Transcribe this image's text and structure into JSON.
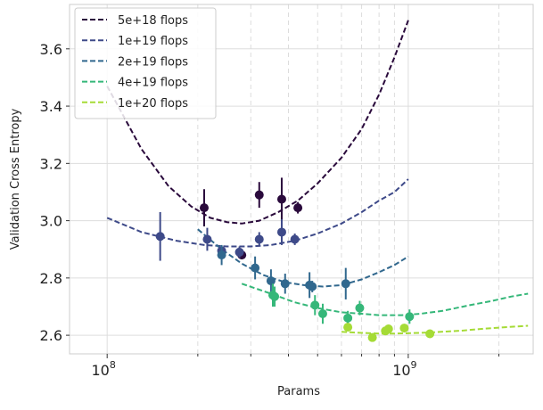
{
  "chart_data": {
    "type": "scatter",
    "xlabel": "Params",
    "ylabel": "Validation Cross Entropy",
    "xscale": "log",
    "xlim": [
      75000000,
      2600000000
    ],
    "ylim": [
      2.535,
      3.755
    ],
    "yticks": [
      2.6,
      2.8,
      3.0,
      3.2,
      3.4,
      3.6
    ],
    "ytick_labels": [
      "2.6",
      "2.8",
      "3.0",
      "3.2",
      "3.4",
      "3.6"
    ],
    "xtick_majors": [
      100000000,
      1000000000
    ],
    "xtick_major_labels": [
      {
        "base": "10",
        "exp": "8"
      },
      {
        "base": "10",
        "exp": "9"
      }
    ],
    "xtick_minors": [
      200000000,
      300000000,
      400000000,
      500000000,
      600000000,
      700000000,
      800000000,
      900000000,
      2000000000
    ],
    "legend_position": "top-left",
    "series": [
      {
        "name": "5e+18 flops",
        "color": "#2a0a3c",
        "points": [
          {
            "x": 210000000,
            "y": 3.045,
            "err": 0.065
          },
          {
            "x": 280000000,
            "y": 2.88,
            "err": 0.015
          },
          {
            "x": 320000000,
            "y": 3.09,
            "err": 0.045
          },
          {
            "x": 380000000,
            "y": 3.075,
            "err": 0.075
          },
          {
            "x": 430000000,
            "y": 3.045,
            "err": 0.02
          }
        ],
        "curve": [
          [
            100000000,
            3.47
          ],
          [
            130000000,
            3.25
          ],
          [
            160000000,
            3.12
          ],
          [
            190000000,
            3.05
          ],
          [
            220000000,
            3.01
          ],
          [
            250000000,
            2.995
          ],
          [
            280000000,
            2.99
          ],
          [
            320000000,
            3.0
          ],
          [
            370000000,
            3.03
          ],
          [
            430000000,
            3.07
          ],
          [
            500000000,
            3.13
          ],
          [
            600000000,
            3.22
          ],
          [
            700000000,
            3.32
          ],
          [
            800000000,
            3.44
          ],
          [
            900000000,
            3.57
          ],
          [
            1000000000,
            3.7
          ]
        ]
      },
      {
        "name": "1e+19 flops",
        "color": "#3e4a89",
        "points": [
          {
            "x": 150000000,
            "y": 2.945,
            "err": 0.085
          },
          {
            "x": 215000000,
            "y": 2.935,
            "err": 0.04
          },
          {
            "x": 240000000,
            "y": 2.895,
            "err": 0.015
          },
          {
            "x": 275000000,
            "y": 2.89,
            "err": 0.02
          },
          {
            "x": 320000000,
            "y": 2.935,
            "err": 0.025
          },
          {
            "x": 380000000,
            "y": 2.96,
            "err": 0.045
          },
          {
            "x": 420000000,
            "y": 2.935,
            "err": 0.02
          }
        ],
        "curve": [
          [
            100000000,
            3.01
          ],
          [
            130000000,
            2.96
          ],
          [
            170000000,
            2.93
          ],
          [
            210000000,
            2.915
          ],
          [
            250000000,
            2.91
          ],
          [
            300000000,
            2.91
          ],
          [
            350000000,
            2.915
          ],
          [
            420000000,
            2.93
          ],
          [
            500000000,
            2.955
          ],
          [
            600000000,
            2.99
          ],
          [
            700000000,
            3.03
          ],
          [
            800000000,
            3.07
          ],
          [
            900000000,
            3.1
          ],
          [
            1000000000,
            3.145
          ]
        ]
      },
      {
        "name": "2e+19 flops",
        "color": "#31688e",
        "points": [
          {
            "x": 240000000,
            "y": 2.88,
            "err": 0.035
          },
          {
            "x": 310000000,
            "y": 2.835,
            "err": 0.04
          },
          {
            "x": 350000000,
            "y": 2.79,
            "err": 0.04
          },
          {
            "x": 390000000,
            "y": 2.78,
            "err": 0.035
          },
          {
            "x": 470000000,
            "y": 2.775,
            "err": 0.045
          },
          {
            "x": 480000000,
            "y": 2.77,
            "err": 0.02
          },
          {
            "x": 620000000,
            "y": 2.78,
            "err": 0.055
          }
        ],
        "curve": [
          [
            200000000,
            2.97
          ],
          [
            240000000,
            2.9
          ],
          [
            280000000,
            2.85
          ],
          [
            330000000,
            2.81
          ],
          [
            390000000,
            2.785
          ],
          [
            450000000,
            2.775
          ],
          [
            520000000,
            2.77
          ],
          [
            600000000,
            2.775
          ],
          [
            700000000,
            2.795
          ],
          [
            800000000,
            2.82
          ],
          [
            900000000,
            2.845
          ],
          [
            1000000000,
            2.875
          ]
        ]
      },
      {
        "name": "4e+19 flops",
        "color": "#35b779",
        "points": [
          {
            "x": 355000000,
            "y": 2.74,
            "err": 0.04
          },
          {
            "x": 360000000,
            "y": 2.735,
            "err": 0.035
          },
          {
            "x": 490000000,
            "y": 2.705,
            "err": 0.035
          },
          {
            "x": 520000000,
            "y": 2.675,
            "err": 0.035
          },
          {
            "x": 630000000,
            "y": 2.66,
            "err": 0.025
          },
          {
            "x": 690000000,
            "y": 2.695,
            "err": 0.025
          },
          {
            "x": 1010000000,
            "y": 2.665,
            "err": 0.025
          }
        ],
        "curve": [
          [
            280000000,
            2.78
          ],
          [
            350000000,
            2.745
          ],
          [
            420000000,
            2.715
          ],
          [
            500000000,
            2.695
          ],
          [
            600000000,
            2.68
          ],
          [
            700000000,
            2.675
          ],
          [
            800000000,
            2.67
          ],
          [
            950000000,
            2.67
          ],
          [
            1100000000,
            2.675
          ],
          [
            1300000000,
            2.685
          ],
          [
            1600000000,
            2.705
          ],
          [
            1900000000,
            2.72
          ],
          [
            2200000000,
            2.735
          ],
          [
            2500000000,
            2.745
          ]
        ]
      },
      {
        "name": "1e+20 flops",
        "color": "#a5db36",
        "points": [
          {
            "x": 630000000,
            "y": 2.628,
            "err": 0.0
          },
          {
            "x": 760000000,
            "y": 2.592,
            "err": 0.01
          },
          {
            "x": 840000000,
            "y": 2.615,
            "err": 0.008
          },
          {
            "x": 860000000,
            "y": 2.622,
            "err": 0.008
          },
          {
            "x": 970000000,
            "y": 2.625,
            "err": 0.008
          },
          {
            "x": 1180000000,
            "y": 2.605,
            "err": 0.008
          }
        ],
        "curve": [
          [
            600000000,
            2.612
          ],
          [
            700000000,
            2.608
          ],
          [
            800000000,
            2.606
          ],
          [
            900000000,
            2.606
          ],
          [
            1000000000,
            2.607
          ],
          [
            1200000000,
            2.61
          ],
          [
            1500000000,
            2.616
          ],
          [
            1800000000,
            2.623
          ],
          [
            2100000000,
            2.628
          ],
          [
            2500000000,
            2.633
          ]
        ]
      }
    ]
  }
}
